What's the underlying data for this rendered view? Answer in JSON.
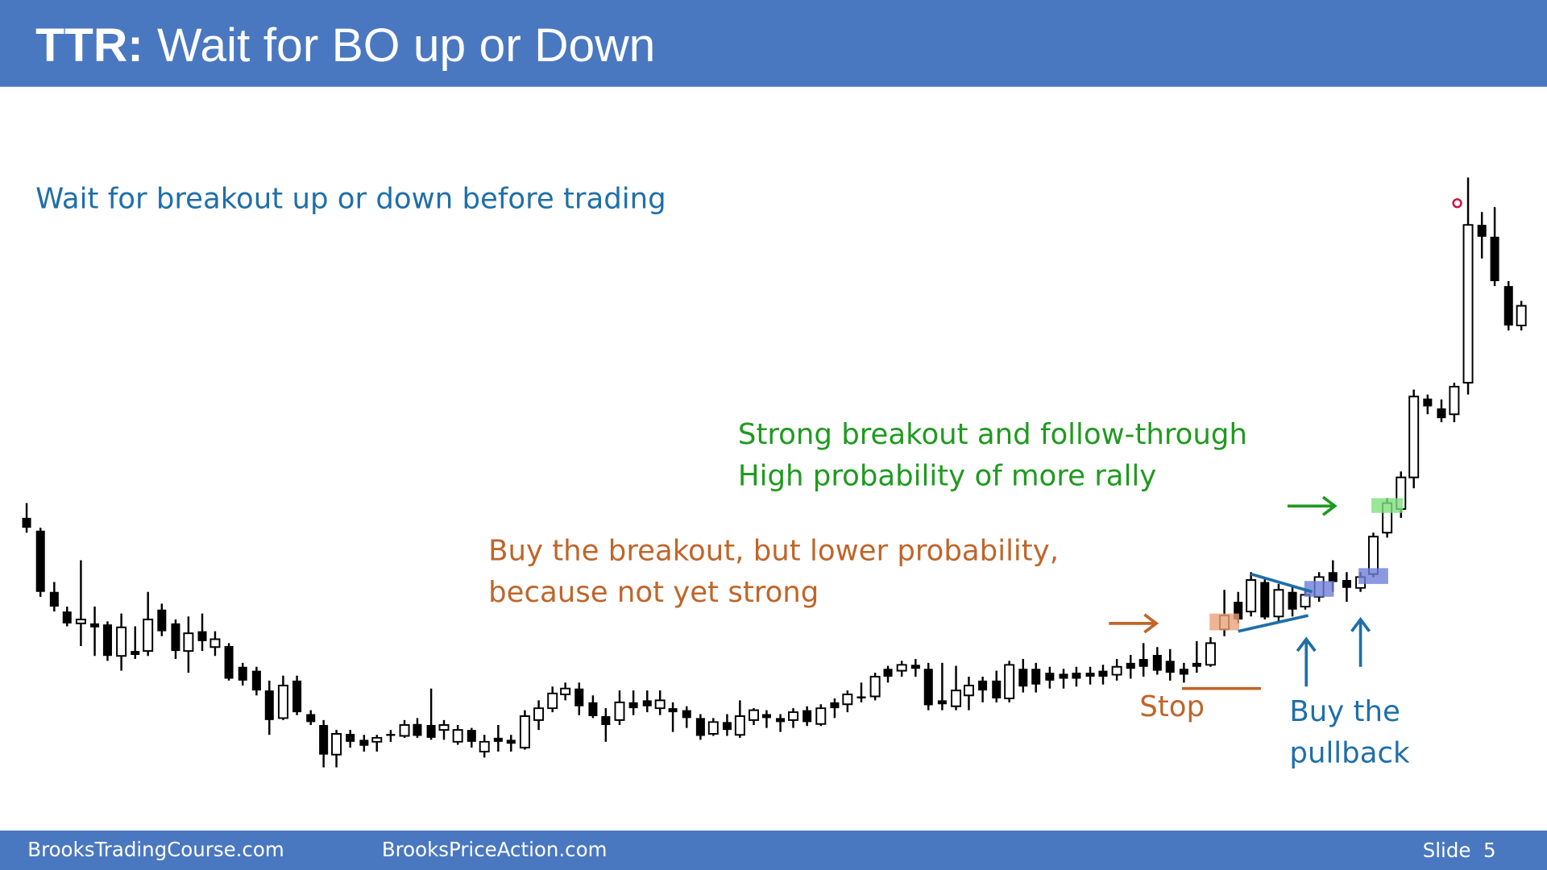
{
  "header": {
    "title_bold": "TTR:",
    "title": "Wait for BO up or Down"
  },
  "subtitle": "Wait for breakout up or down before trading",
  "annotations": {
    "strong": [
      "Strong breakout and follow-through",
      "High probability of more rally"
    ],
    "buy_breakout": [
      "Buy the breakout, but lower probability,",
      "because not yet strong"
    ],
    "stop": "Stop",
    "pullback": [
      "Buy the",
      "pullback"
    ]
  },
  "footer": {
    "site1": "BrooksTradingCourse.com",
    "site2": "BrooksPriceAction.com",
    "slide": "Slide  5"
  }
}
